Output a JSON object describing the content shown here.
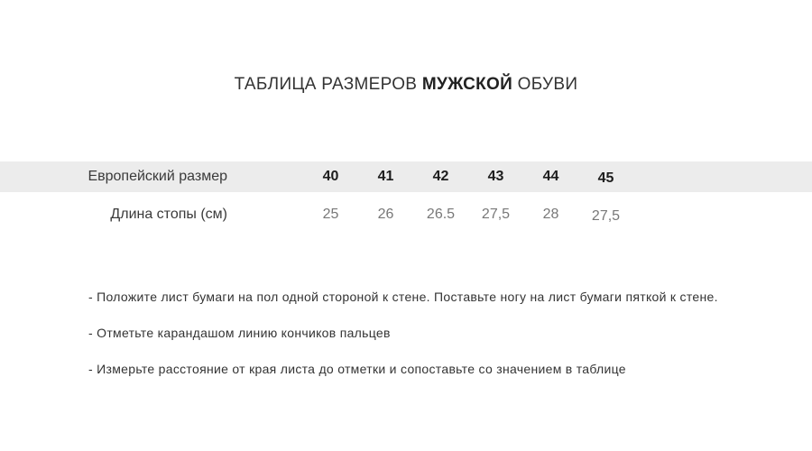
{
  "title": {
    "prefix": "ТАБЛИЦА РАЗМЕРОВ ",
    "highlight": "МУЖСКОЙ",
    "suffix": " ОБУВИ"
  },
  "table": {
    "rows": [
      {
        "label": "Европейский размер",
        "values": [
          "40",
          "41",
          "42",
          "43",
          "44",
          "45"
        ]
      },
      {
        "label": "Длина стопы (см)",
        "values": [
          "25",
          "26",
          "26.5",
          "27,5",
          "28",
          "27,5"
        ]
      }
    ]
  },
  "instructions": [
    "- Положите лист бумаги на пол одной стороной к стене. Поставьте ногу на лист бумаги пяткой к стене.",
    "- Отметьте карандашом линию кончиков пальцев",
    "- Измерьте расстояние от края листа до отметки и сопоставьте со значением в таблице"
  ],
  "colors": {
    "header_row_bg": "#ececec",
    "title_text": "#333333",
    "header_values_text": "#1d1d1d",
    "values_text": "#787878",
    "instructions_text": "#333333"
  }
}
